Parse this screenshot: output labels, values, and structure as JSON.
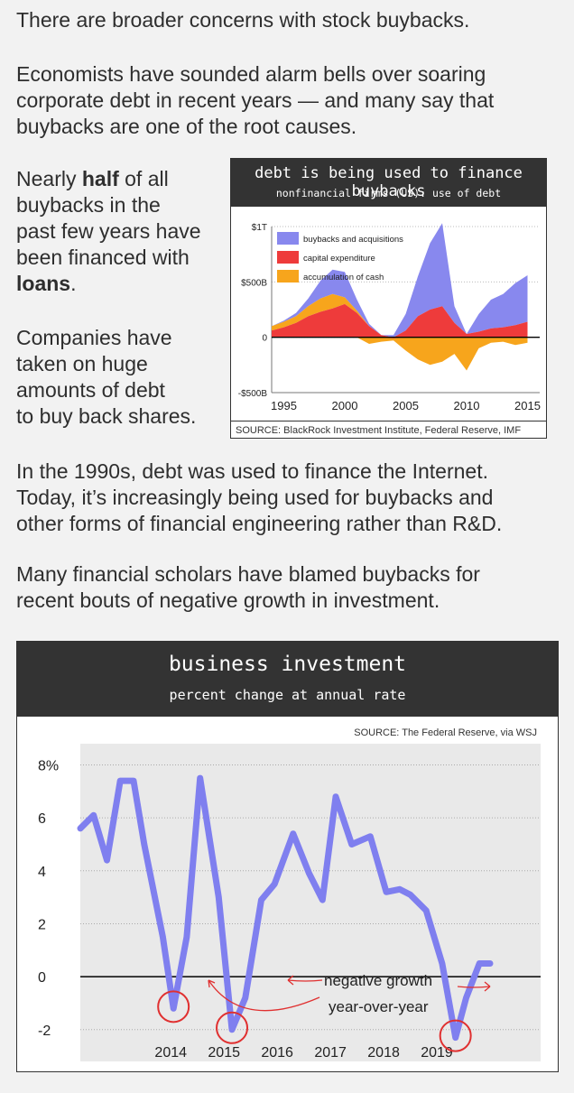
{
  "text": {
    "p1": "There are broader concerns with stock buybacks.",
    "p2_l1": "Economists have sounded alarm bells over soaring",
    "p2_l2": "corporate debt in recent years — and many say that",
    "p2_l3": "buybacks are one of the root causes.",
    "side_a1": "Nearly ",
    "side_half": "half",
    "side_a2": " of all",
    "side_l2": "buybacks in the",
    "side_l3": "past few years have",
    "side_l4": "been financed with",
    "side_loans": "loans",
    "side_dot": ".",
    "side_b1": "Companies have",
    "side_b2": "taken on huge",
    "side_b3": "amounts of debt",
    "side_b4": "to buy back shares.",
    "p3_l1": "In the 1990s, debt was used to finance the Internet.",
    "p3_l2": "Today, it’s increasingly being used for buybacks and",
    "p3_l3": "other forms of financial engineering rather than R&D.",
    "p4_l1": "Many financial scholars have blamed buybacks for",
    "p4_l2": "recent bouts of negative growth in investment."
  },
  "colors": {
    "buybacks": "#8888ee",
    "capex": "#ee3b3b",
    "cash": "#f7a51c",
    "line": "#7f7fef",
    "circle": "#e03030"
  },
  "chart_data": [
    {
      "type": "area",
      "title": "debt is being used to finance buybacks",
      "subtitle": "nonfinancial firms (US): use of debt",
      "source": "SOURCE: BlackRock Investment Institute, Federal Reserve, IMF",
      "ytick_labels": [
        "$1T",
        "$500B",
        "0",
        "-$500B"
      ],
      "yticks": [
        1000,
        500,
        0,
        -500
      ],
      "xtick_labels": [
        "1995",
        "2000",
        "2005",
        "2010",
        "2015"
      ],
      "xticks": [
        1995,
        2000,
        2005,
        2010,
        2015
      ],
      "xlim": [
        1994,
        2016
      ],
      "ylim": [
        -500,
        1000
      ],
      "legend": [
        "buybacks and acquisitions",
        "capital expenditure",
        "accumulation of cash"
      ],
      "legend_position": "top-left",
      "x": [
        1994,
        1995,
        1996,
        1997,
        1998,
        1999,
        2000,
        2001,
        2002,
        2003,
        2004,
        2005,
        2006,
        2007,
        2008,
        2009,
        2010,
        2011,
        2012,
        2013,
        2014,
        2015
      ],
      "series": [
        {
          "name": "capital expenditure",
          "values": [
            60,
            90,
            130,
            190,
            230,
            260,
            300,
            220,
            100,
            20,
            -10,
            60,
            190,
            250,
            280,
            130,
            30,
            50,
            80,
            90,
            110,
            140
          ]
        },
        {
          "name": "accumulation of cash",
          "values": [
            40,
            50,
            60,
            90,
            120,
            130,
            60,
            20,
            -60,
            -40,
            -20,
            -120,
            -200,
            -250,
            -220,
            -150,
            -300,
            -100,
            -50,
            -40,
            -70,
            -50
          ]
        },
        {
          "name": "buybacks and acquisitions",
          "values": [
            0,
            10,
            30,
            70,
            160,
            220,
            230,
            100,
            20,
            0,
            20,
            150,
            360,
            600,
            750,
            150,
            0,
            160,
            260,
            300,
            380,
            420
          ]
        }
      ]
    },
    {
      "type": "line",
      "title": "business investment",
      "subtitle": "percent change at annual rate",
      "source": "SOURCE: The Federal Reserve, via WSJ",
      "ytick_labels": [
        "8%",
        "6",
        "4",
        "2",
        "0",
        "-2"
      ],
      "yticks": [
        8,
        6,
        4,
        2,
        0,
        -2
      ],
      "xtick_labels": [
        "2014",
        "2015",
        "2016",
        "2017",
        "2018",
        "2019"
      ],
      "xticks": [
        2014,
        2015,
        2016,
        2017,
        2018,
        2019
      ],
      "xlim": [
        2012.35,
        2021.0
      ],
      "ylim": [
        -3.2,
        8.8
      ],
      "annotation_l1": "negative growth",
      "annotation_l2": "year-over-year",
      "x": [
        2012.35,
        2012.6,
        2012.85,
        2013.1,
        2013.35,
        2013.55,
        2013.9,
        2014.1,
        2014.35,
        2014.6,
        2014.95,
        2015.2,
        2015.45,
        2015.75,
        2016.0,
        2016.35,
        2016.65,
        2016.9,
        2017.15,
        2017.45,
        2017.8,
        2018.1,
        2018.35,
        2018.55,
        2018.85,
        2019.15,
        2019.4,
        2019.6,
        2019.85,
        2020.05,
        2020.3,
        2020.6,
        2020.9
      ],
      "values": [
        5.6,
        6.1,
        4.4,
        7.4,
        7.4,
        5.0,
        1.5,
        -1.2,
        1.5,
        7.5,
        3.0,
        -2.0,
        -0.8,
        2.9,
        3.5,
        5.4,
        3.9,
        2.9,
        6.8,
        5.0,
        5.3,
        3.2,
        3.3,
        3.1,
        2.5,
        0.5,
        -2.3,
        -0.8,
        0.5,
        0.5,
        0.5,
        0.5,
        0.5
      ],
      "highlight_points": [
        [
          2014.1,
          -1.2
        ],
        [
          2015.2,
          -2.0
        ],
        [
          2019.4,
          -2.3
        ]
      ]
    }
  ]
}
